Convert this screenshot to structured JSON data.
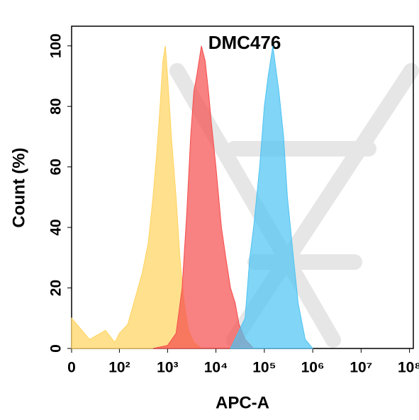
{
  "chart_data": {
    "type": "area",
    "title": "DMC476",
    "x_label": "APC-A",
    "y_label": "Count  (%)",
    "xscale": "biexponential",
    "xlim": [
      0,
      120000000
    ],
    "ylim": [
      0,
      106.5
    ],
    "xticks": [
      0,
      {
        "value": 100,
        "label": "10²"
      },
      {
        "value": 1000,
        "label": "10³"
      },
      {
        "value": 10000,
        "label": "10⁴"
      },
      {
        "value": 100000,
        "label": "10⁵"
      },
      {
        "value": 1000000,
        "label": "10⁶"
      },
      {
        "value": 10000000,
        "label": "10⁷"
      },
      {
        "value": 100000000,
        "label": "10⁸"
      }
    ],
    "yticks": [
      0,
      20,
      40,
      60,
      80,
      100
    ],
    "series": [
      {
        "color": "#ffd35c",
        "x": [
          0,
          20,
          50,
          80,
          100,
          150,
          200,
          300,
          400,
          500,
          600,
          700,
          800,
          900,
          1000,
          1200,
          1500,
          1800,
          2200,
          2700,
          3500,
          5000
        ],
        "values": [
          10,
          3,
          6,
          2,
          5,
          8,
          15,
          25,
          35,
          50,
          65,
          80,
          95,
          100,
          90,
          70,
          50,
          30,
          15,
          6,
          2,
          0
        ]
      },
      {
        "color": "#f54b4b",
        "x": [
          500,
          1000,
          1500,
          2000,
          2500,
          3000,
          3500,
          4000,
          5000,
          6000,
          7000,
          8000,
          10000,
          13000,
          16000,
          20000,
          25000,
          30000,
          40000,
          60000
        ],
        "values": [
          0,
          1,
          5,
          20,
          45,
          70,
          85,
          90,
          100,
          95,
          85,
          75,
          60,
          40,
          30,
          20,
          15,
          8,
          3,
          0
        ]
      },
      {
        "color": "#4cc3f2",
        "x": [
          20000,
          40000,
          50000,
          60000,
          80000,
          100000,
          120000,
          150000,
          200000,
          250000,
          300000,
          400000,
          500000,
          700000,
          1000000
        ],
        "values": [
          0,
          10,
          30,
          40,
          60,
          80,
          90,
          100,
          85,
          70,
          50,
          30,
          15,
          3,
          0
        ]
      }
    ]
  }
}
